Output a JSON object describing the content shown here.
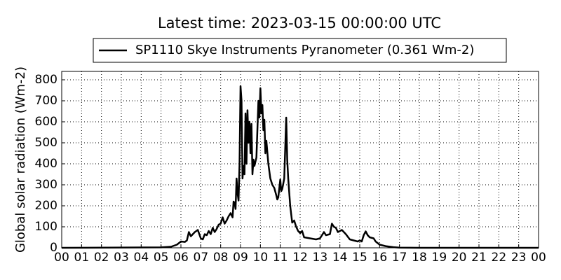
{
  "chart_data": {
    "type": "line",
    "title": "Latest time: 2023-03-15 00:00:00 UTC",
    "y_label": "Global solar radiation (Wm-2)",
    "x": [
      0,
      5,
      5.5,
      5.8,
      6.0,
      6.2,
      6.3,
      6.4,
      6.5,
      6.7,
      6.85,
      7.0,
      7.1,
      7.2,
      7.3,
      7.4,
      7.5,
      7.6,
      7.7,
      7.8,
      7.9,
      8.0,
      8.1,
      8.2,
      8.3,
      8.4,
      8.5,
      8.6,
      8.65,
      8.7,
      8.75,
      8.8,
      8.85,
      8.9,
      8.95,
      9.0,
      9.05,
      9.1,
      9.15,
      9.2,
      9.25,
      9.3,
      9.35,
      9.4,
      9.45,
      9.5,
      9.55,
      9.6,
      9.65,
      9.7,
      9.8,
      9.9,
      9.95,
      10.0,
      10.05,
      10.1,
      10.15,
      10.2,
      10.25,
      10.3,
      10.4,
      10.5,
      10.6,
      10.7,
      10.8,
      10.85,
      10.9,
      11.0,
      11.05,
      11.1,
      11.2,
      11.3,
      11.35,
      11.4,
      11.5,
      11.6,
      11.7,
      11.8,
      11.9,
      12.0,
      12.1,
      12.2,
      12.5,
      12.8,
      13.0,
      13.2,
      13.3,
      13.5,
      13.6,
      13.7,
      13.8,
      13.9,
      14.1,
      14.3,
      14.5,
      14.7,
      14.9,
      15.0,
      15.1,
      15.2,
      15.3,
      15.4,
      15.5,
      15.7,
      15.8,
      16.0,
      16.3,
      16.7,
      17.0,
      18,
      24
    ],
    "series": [
      {
        "name": "SP1110 Skye Instruments Pyranometer (0.361 Wm-2)",
        "color": "#000000",
        "values": [
          0,
          2,
          5,
          15,
          30,
          28,
          35,
          75,
          55,
          75,
          85,
          45,
          40,
          65,
          60,
          80,
          65,
          95,
          75,
          90,
          110,
          115,
          145,
          115,
          130,
          150,
          165,
          145,
          220,
          215,
          185,
          330,
          260,
          225,
          400,
          770,
          700,
          330,
          390,
          350,
          640,
          400,
          655,
          500,
          600,
          450,
          590,
          350,
          420,
          390,
          430,
          700,
          620,
          760,
          640,
          680,
          560,
          610,
          450,
          510,
          400,
          330,
          300,
          285,
          250,
          230,
          240,
          325,
          270,
          280,
          330,
          620,
          420,
          330,
          200,
          120,
          130,
          100,
          80,
          70,
          80,
          50,
          45,
          40,
          45,
          75,
          60,
          65,
          115,
          100,
          95,
          75,
          85,
          65,
          40,
          35,
          30,
          35,
          30,
          60,
          78,
          60,
          50,
          45,
          30,
          15,
          8,
          3,
          1,
          0,
          0
        ]
      }
    ],
    "xlim": [
      0,
      24
    ],
    "xticks": [
      {
        "value": 0,
        "label": "00"
      },
      {
        "value": 1,
        "label": "01"
      },
      {
        "value": 2,
        "label": "02"
      },
      {
        "value": 3,
        "label": "03"
      },
      {
        "value": 4,
        "label": "04"
      },
      {
        "value": 5,
        "label": "05"
      },
      {
        "value": 6,
        "label": "06"
      },
      {
        "value": 7,
        "label": "07"
      },
      {
        "value": 8,
        "label": "08"
      },
      {
        "value": 9,
        "label": "09"
      },
      {
        "value": 10,
        "label": "10"
      },
      {
        "value": 11,
        "label": "11"
      },
      {
        "value": 12,
        "label": "12"
      },
      {
        "value": 13,
        "label": "13"
      },
      {
        "value": 14,
        "label": "14"
      },
      {
        "value": 15,
        "label": "15"
      },
      {
        "value": 16,
        "label": "16"
      },
      {
        "value": 17,
        "label": "17"
      },
      {
        "value": 18,
        "label": "18"
      },
      {
        "value": 19,
        "label": "19"
      },
      {
        "value": 20,
        "label": "20"
      },
      {
        "value": 21,
        "label": "21"
      },
      {
        "value": 22,
        "label": "22"
      },
      {
        "value": 23,
        "label": "23"
      },
      {
        "value": 24,
        "label": "00"
      }
    ],
    "ylim": [
      0,
      840
    ],
    "yticks": [
      0,
      100,
      200,
      300,
      400,
      500,
      600,
      700,
      800
    ],
    "grid": true
  }
}
